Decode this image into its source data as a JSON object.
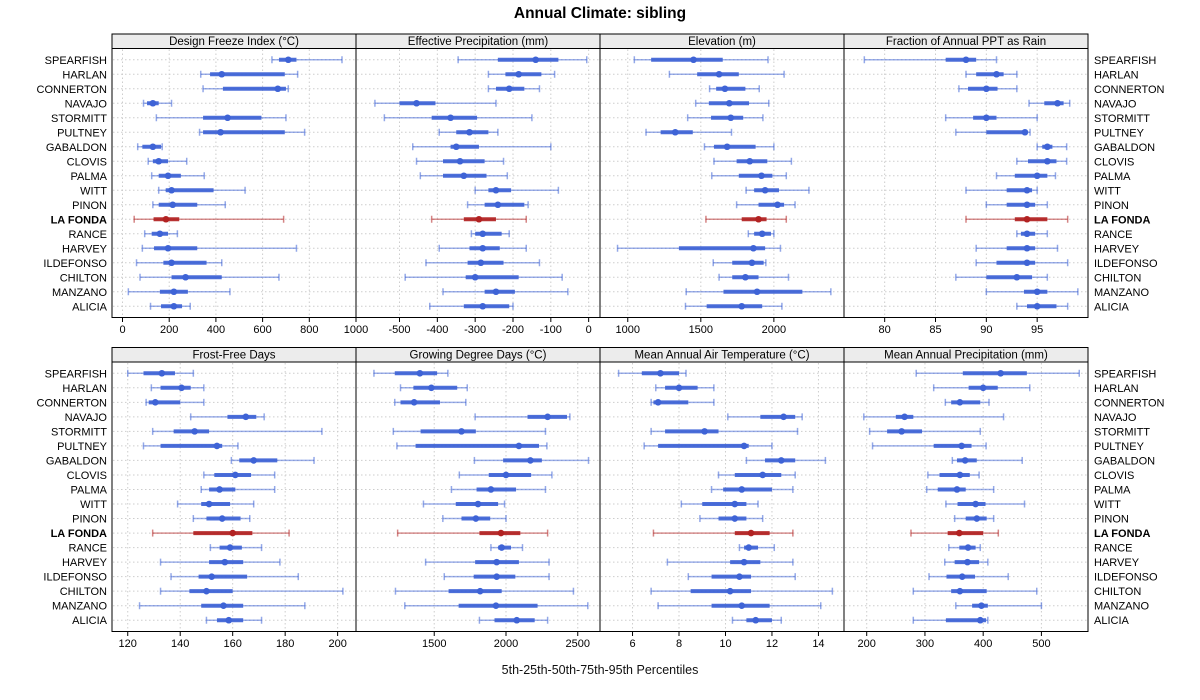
{
  "title": "Annual Climate: sibling",
  "footer": "5th-25th-50th-75th-95th Percentiles",
  "highlight_station": "LA FONDA",
  "colors": {
    "series": "#3E63D6",
    "highlight": "#B22222",
    "grid": "#CDCDCD",
    "strip_bg": "#ECECEC",
    "border": "#000000",
    "panel_bg": "#FFFFFF"
  },
  "chart_data": {
    "type": "dotplot-percentile-intervals",
    "layout": {
      "rows": 2,
      "cols": 4,
      "legend": "none",
      "grid": "dotted"
    },
    "percentiles": [
      5,
      25,
      50,
      75,
      95
    ],
    "stations": [
      "SPEARFISH",
      "HARLAN",
      "CONNERTON",
      "NAVAJO",
      "STORMITT",
      "PULTNEY",
      "GABALDON",
      "CLOVIS",
      "PALMA",
      "WITT",
      "PINON",
      "LA FONDA",
      "RANCE",
      "HARVEY",
      "ILDEFONSO",
      "CHILTON",
      "MANZANO",
      "ALICIA"
    ],
    "panels": [
      {
        "title": "Design Freeze Index (°C)",
        "row": 0,
        "col": 0,
        "xlim": [
          -45,
          1000
        ],
        "ticks": [
          0,
          200,
          400,
          600,
          800,
          1000
        ],
        "values": [
          [
            640,
            670,
            710,
            745,
            940
          ],
          [
            335,
            375,
            425,
            695,
            750
          ],
          [
            345,
            430,
            665,
            700,
            710
          ],
          [
            90,
            105,
            130,
            155,
            210
          ],
          [
            145,
            345,
            450,
            595,
            700
          ],
          [
            330,
            345,
            420,
            695,
            780
          ],
          [
            65,
            85,
            130,
            165,
            170
          ],
          [
            110,
            130,
            155,
            195,
            275
          ],
          [
            125,
            155,
            195,
            250,
            350
          ],
          [
            155,
            185,
            210,
            390,
            525
          ],
          [
            130,
            155,
            215,
            320,
            440
          ],
          [
            50,
            133,
            186,
            243,
            690
          ],
          [
            95,
            125,
            160,
            195,
            235
          ],
          [
            85,
            135,
            195,
            320,
            745
          ],
          [
            60,
            175,
            210,
            360,
            425
          ],
          [
            75,
            210,
            270,
            425,
            670
          ],
          [
            25,
            160,
            220,
            280,
            460
          ],
          [
            120,
            165,
            220,
            255,
            290
          ]
        ]
      },
      {
        "title": "Effective Precipitation (mm)",
        "row": 0,
        "col": 1,
        "xlim": [
          -615,
          30
        ],
        "ticks": [
          -500,
          -400,
          -300,
          -200,
          -100,
          0
        ],
        "values": [
          [
            -345,
            -240,
            -140,
            -80,
            -5
          ],
          [
            -265,
            -220,
            -185,
            -125,
            -90
          ],
          [
            -265,
            -245,
            -210,
            -170,
            -130
          ],
          [
            -565,
            -500,
            -455,
            -405,
            -245
          ],
          [
            -540,
            -415,
            -365,
            -295,
            -150
          ],
          [
            -395,
            -350,
            -315,
            -265,
            -240
          ],
          [
            -465,
            -365,
            -350,
            -290,
            -100
          ],
          [
            -455,
            -385,
            -340,
            -275,
            -225
          ],
          [
            -445,
            -385,
            -330,
            -270,
            -215
          ],
          [
            -300,
            -265,
            -245,
            -205,
            -80
          ],
          [
            -320,
            -275,
            -240,
            -170,
            -160
          ],
          [
            -415,
            -330,
            -290,
            -245,
            -165
          ],
          [
            -310,
            -300,
            -280,
            -230,
            -210
          ],
          [
            -395,
            -315,
            -280,
            -235,
            -165
          ],
          [
            -430,
            -320,
            -285,
            -225,
            -130
          ],
          [
            -485,
            -325,
            -300,
            -185,
            -70
          ],
          [
            -385,
            -275,
            -245,
            -195,
            -55
          ],
          [
            -420,
            -330,
            -280,
            -210,
            -200
          ]
        ]
      },
      {
        "title": "Elevation (m)",
        "row": 0,
        "col": 2,
        "xlim": [
          810,
          2480
        ],
        "ticks": [
          1000,
          1500,
          2000
        ],
        "values": [
          [
            1045,
            1160,
            1450,
            1650,
            1960
          ],
          [
            1285,
            1475,
            1625,
            1760,
            2070
          ],
          [
            1560,
            1605,
            1665,
            1805,
            1900
          ],
          [
            1465,
            1555,
            1695,
            1830,
            1965
          ],
          [
            1410,
            1570,
            1705,
            1790,
            1925
          ],
          [
            1125,
            1225,
            1325,
            1445,
            1710
          ],
          [
            1525,
            1590,
            1680,
            1875,
            2000
          ],
          [
            1590,
            1745,
            1835,
            1955,
            2120
          ],
          [
            1575,
            1760,
            1915,
            1990,
            2085
          ],
          [
            1810,
            1865,
            1940,
            2035,
            2240
          ],
          [
            1745,
            1895,
            2025,
            2070,
            2145
          ],
          [
            1535,
            1780,
            1895,
            1950,
            2085
          ],
          [
            1825,
            1865,
            1920,
            1980,
            2000
          ],
          [
            930,
            1350,
            1860,
            1940,
            2045
          ],
          [
            1585,
            1715,
            1850,
            1930,
            1945
          ],
          [
            1625,
            1715,
            1805,
            1895,
            2100
          ],
          [
            1400,
            1655,
            1885,
            2195,
            2390
          ],
          [
            1395,
            1540,
            1780,
            1920,
            2055
          ]
        ]
      },
      {
        "title": "Fraction of Annual PPT as Rain",
        "row": 0,
        "col": 3,
        "xlim": [
          76,
          100
        ],
        "ticks": [
          80,
          85,
          90,
          95
        ],
        "values": [
          [
            78,
            86,
            88,
            89,
            91
          ],
          [
            88,
            89,
            91,
            91.7,
            93
          ],
          [
            87.3,
            88.2,
            90,
            91.1,
            93
          ],
          [
            94.2,
            95.7,
            97,
            97.6,
            98.2
          ],
          [
            86,
            88.7,
            90,
            91,
            95
          ],
          [
            87,
            90,
            93.8,
            94,
            94.3
          ],
          [
            95,
            95.5,
            96,
            96.5,
            97.9
          ],
          [
            93,
            94.1,
            96,
            96.9,
            97.9
          ],
          [
            91,
            92.8,
            95,
            96,
            96.8
          ],
          [
            88,
            92,
            94,
            94.5,
            95
          ],
          [
            90,
            92,
            94,
            94.8,
            96
          ],
          [
            88,
            92.8,
            94,
            96,
            98
          ],
          [
            93,
            93.4,
            94,
            94.8,
            96
          ],
          [
            89,
            92,
            94,
            94.8,
            97
          ],
          [
            89,
            91,
            94,
            94.8,
            98
          ],
          [
            87,
            90,
            93,
            94.5,
            96
          ],
          [
            90,
            93.7,
            95,
            96,
            99
          ],
          [
            93,
            94,
            95,
            96.9,
            98
          ]
        ]
      },
      {
        "title": "Frost-Free Days",
        "row": 1,
        "col": 0,
        "xlim": [
          114,
          207
        ],
        "ticks": [
          120,
          140,
          160,
          180,
          200
        ],
        "values": [
          [
            120,
            126,
            133,
            138,
            145
          ],
          [
            129,
            132.5,
            140.5,
            144,
            149
          ],
          [
            127,
            128,
            130.5,
            140,
            149
          ],
          [
            144,
            158,
            165,
            169,
            172
          ],
          [
            129.5,
            137.5,
            145.5,
            151,
            194
          ],
          [
            126,
            132.5,
            154,
            156,
            162
          ],
          [
            159.5,
            162.5,
            168,
            177,
            191
          ],
          [
            149,
            153,
            161,
            167,
            176
          ],
          [
            148,
            151,
            155,
            161,
            176
          ],
          [
            139,
            148,
            151,
            159,
            168
          ],
          [
            145,
            150,
            156,
            163,
            166.5
          ],
          [
            129.5,
            145,
            160,
            167.5,
            181.5
          ],
          [
            151.5,
            155,
            159,
            163.5,
            171
          ],
          [
            132.5,
            151,
            157,
            164,
            178
          ],
          [
            136.5,
            147,
            152,
            165.5,
            185
          ],
          [
            132.5,
            143.5,
            150,
            160,
            202
          ],
          [
            124.5,
            148,
            156.5,
            164,
            187.5
          ],
          [
            150,
            154,
            158.5,
            164,
            171
          ]
        ]
      },
      {
        "title": "Growing Degree Days (°C)",
        "row": 1,
        "col": 1,
        "xlim": [
          955,
          2655
        ],
        "ticks": [
          1500,
          2000,
          2500
        ],
        "values": [
          [
            1080,
            1225,
            1400,
            1520,
            1595
          ],
          [
            1265,
            1355,
            1480,
            1660,
            1730
          ],
          [
            1225,
            1265,
            1360,
            1540,
            1720
          ],
          [
            1785,
            2150,
            2290,
            2425,
            2445
          ],
          [
            1215,
            1405,
            1690,
            1790,
            2275
          ],
          [
            1240,
            1370,
            2090,
            2230,
            2285
          ],
          [
            1780,
            1980,
            2170,
            2250,
            2575
          ],
          [
            1675,
            1880,
            2000,
            2175,
            2320
          ],
          [
            1620,
            1795,
            1895,
            2070,
            2275
          ],
          [
            1425,
            1650,
            1805,
            1945,
            1990
          ],
          [
            1560,
            1690,
            1790,
            1890,
            2000
          ],
          [
            1245,
            1815,
            1965,
            2100,
            2290
          ],
          [
            1895,
            1945,
            1970,
            2035,
            2115
          ],
          [
            1440,
            1785,
            1935,
            2090,
            2300
          ],
          [
            1570,
            1775,
            1935,
            2065,
            2300
          ],
          [
            1230,
            1600,
            1820,
            1970,
            2470
          ],
          [
            1295,
            1670,
            1930,
            2220,
            2570
          ],
          [
            1815,
            1920,
            2075,
            2200,
            2290
          ]
        ]
      },
      {
        "title": "Mean Annual Air Temperature (°C)",
        "row": 1,
        "col": 2,
        "xlim": [
          4.6,
          15.1
        ],
        "ticks": [
          6,
          8,
          10,
          12,
          14
        ],
        "values": [
          [
            5.4,
            6.4,
            7.2,
            8,
            8.3
          ],
          [
            7,
            7.4,
            8,
            8.8,
            9.5
          ],
          [
            6.8,
            6.9,
            7.1,
            8.4,
            9.5
          ],
          [
            10.1,
            11.5,
            12.5,
            13,
            13.3
          ],
          [
            6.8,
            7.4,
            9.1,
            9.7,
            13.1
          ],
          [
            6.5,
            7.1,
            10.8,
            11,
            12
          ],
          [
            10.9,
            11.7,
            12.4,
            13,
            14.3
          ],
          [
            9.7,
            10.4,
            11.6,
            12.4,
            13
          ],
          [
            9.4,
            9.9,
            10.7,
            12,
            12.9
          ],
          [
            8.1,
            9,
            10.4,
            10.9,
            11.4
          ],
          [
            8.9,
            9.7,
            10.4,
            10.9,
            11.6
          ],
          [
            6.9,
            10.4,
            11.1,
            11.9,
            12.9
          ],
          [
            10.6,
            10.8,
            11,
            11.4,
            12.1
          ],
          [
            7.5,
            10.2,
            10.8,
            11.5,
            12.9
          ],
          [
            8.4,
            9.4,
            10.6,
            11.1,
            13
          ],
          [
            6.8,
            8.5,
            10.2,
            11.1,
            14.6
          ],
          [
            7.1,
            9.4,
            10.7,
            11.9,
            14.1
          ],
          [
            10.3,
            10.9,
            11.3,
            12,
            12.4
          ]
        ]
      },
      {
        "title": "Mean Annual Precipitation (mm)",
        "row": 1,
        "col": 3,
        "xlim": [
          161,
          580
        ],
        "ticks": [
          200,
          300,
          400,
          500
        ],
        "values": [
          [
            285,
            365,
            430,
            475,
            565
          ],
          [
            315,
            375,
            400,
            425,
            480
          ],
          [
            335,
            345,
            360,
            395,
            410
          ],
          [
            195,
            250,
            265,
            280,
            435
          ],
          [
            205,
            235,
            260,
            295,
            395
          ],
          [
            210,
            315,
            363,
            380,
            405
          ],
          [
            347,
            355,
            369,
            389,
            467
          ],
          [
            305,
            325,
            360,
            377,
            393
          ],
          [
            303,
            322,
            355,
            370,
            418
          ],
          [
            336,
            356,
            387,
            404,
            471
          ],
          [
            351,
            370,
            389,
            406,
            418
          ],
          [
            276,
            339,
            359,
            400,
            426
          ],
          [
            341,
            359,
            374,
            387,
            395
          ],
          [
            334,
            351,
            373,
            393,
            408
          ],
          [
            307,
            337,
            364,
            386,
            443
          ],
          [
            280,
            345,
            360,
            406,
            492
          ],
          [
            353,
            381,
            397,
            408,
            500
          ],
          [
            280,
            336,
            395,
            405,
            408
          ]
        ]
      }
    ]
  }
}
